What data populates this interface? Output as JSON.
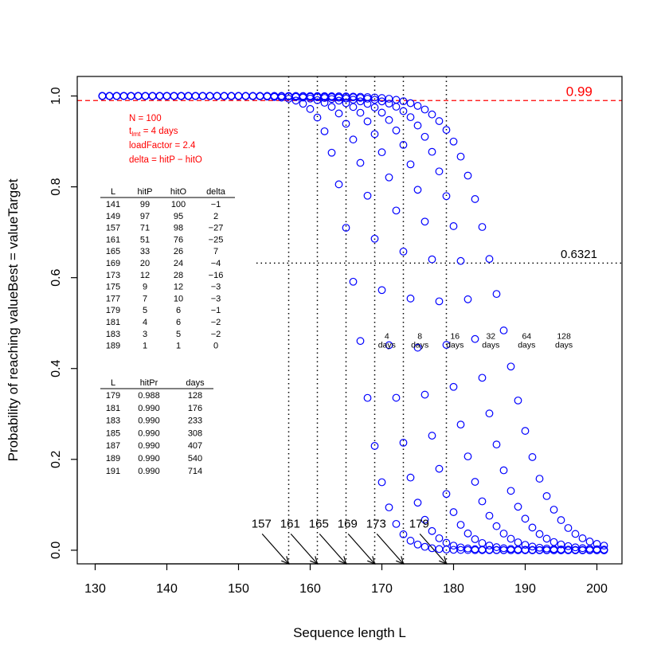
{
  "chart_data": {
    "type": "scatter",
    "xlabel": "Sequence length L",
    "ylabel": "Probability of reaching valueBest = valueTarget",
    "xlim": [
      127.5,
      203.5
    ],
    "ylim": [
      -0.03,
      1.043
    ],
    "x_ticks": [
      "130",
      "140",
      "150",
      "160",
      "170",
      "180",
      "190",
      "200"
    ],
    "y_ticks": [
      "0.0",
      "0.2",
      "0.4",
      "0.6",
      "0.8",
      "1.0"
    ],
    "grid": false,
    "series": [
      {
        "name": "4 days",
        "label_lines": [
          "4",
          "days"
        ],
        "label_at": [
          170.7,
          0.465
        ],
        "model": {
          "type": "logistic",
          "midpoint": 166.7,
          "scale": 1.9,
          "x_start": 131,
          "x_end": 201,
          "step": 1
        }
      },
      {
        "name": "8 days",
        "label_lines": [
          "8",
          "days"
        ],
        "label_at": [
          175.3,
          0.465
        ],
        "model": {
          "type": "logistic",
          "midpoint": 170.6,
          "scale": 2.05,
          "x_start": 131,
          "x_end": 201,
          "step": 1
        }
      },
      {
        "name": "16 days",
        "label_lines": [
          "16",
          "days"
        ],
        "label_at": [
          180.2,
          0.465
        ],
        "model": {
          "type": "logistic",
          "midpoint": 174.5,
          "scale": 2.3,
          "x_start": 131,
          "x_end": 201,
          "step": 1
        }
      },
      {
        "name": "32 days",
        "label_lines": [
          "32",
          "days"
        ],
        "label_at": [
          185.2,
          0.465
        ],
        "model": {
          "type": "logistic",
          "midpoint": 178.5,
          "scale": 2.6,
          "x_start": 131,
          "x_end": 201,
          "step": 1
        }
      },
      {
        "name": "64 days",
        "label_lines": [
          "64",
          "days"
        ],
        "label_at": [
          190.2,
          0.465
        ],
        "model": {
          "type": "logistic",
          "midpoint": 182.6,
          "scale": 2.85,
          "x_start": 131,
          "x_end": 201,
          "step": 1
        }
      },
      {
        "name": "128 days",
        "label_lines": [
          "128",
          "days"
        ],
        "label_at": [
          195.4,
          0.465
        ],
        "model": {
          "type": "logistic",
          "midpoint": 186.8,
          "scale": 3.1,
          "x_start": 131,
          "x_end": 201,
          "step": 1
        }
      }
    ],
    "hline_099": {
      "y": 0.99,
      "label": "0.99",
      "color": "#ff0000",
      "style": "dashed",
      "label_at": [
        195.7,
        1.0
      ]
    },
    "hline_06321": {
      "y": 0.6321,
      "x_from": 152.5,
      "label": "0.6321",
      "color": "#000000",
      "style": "dotted",
      "label_at": [
        197.5,
        0.643
      ]
    },
    "vlines": [
      {
        "x": 157,
        "label": "157"
      },
      {
        "x": 161,
        "label": "161"
      },
      {
        "x": 165,
        "label": "165"
      },
      {
        "x": 169,
        "label": "169"
      },
      {
        "x": 173,
        "label": "173"
      },
      {
        "x": 179,
        "label": "179"
      }
    ],
    "arrow_label_y": 0.05,
    "params": {
      "n": "N = 100",
      "tlmt_prefix": "t",
      "tlmt_sub": "lmt",
      "tlmt_value": " = 4  days",
      "load": "loadFactor = 2.4",
      "delta": "delta = hitP − hitO"
    },
    "table1": {
      "columns": [
        "L",
        "hitP",
        "hitO",
        "delta"
      ],
      "rows": [
        [
          "141",
          "99",
          "100",
          "−1"
        ],
        [
          "149",
          "97",
          "95",
          "2"
        ],
        [
          "157",
          "71",
          "98",
          "−27"
        ],
        [
          "161",
          "51",
          "76",
          "−25"
        ],
        [
          "165",
          "33",
          "26",
          "7"
        ],
        [
          "169",
          "20",
          "24",
          "−4"
        ],
        [
          "173",
          "12",
          "28",
          "−16"
        ],
        [
          "175",
          "9",
          "12",
          "−3"
        ],
        [
          "177",
          "7",
          "10",
          "−3"
        ],
        [
          "179",
          "5",
          "6",
          "−1"
        ],
        [
          "181",
          "4",
          "6",
          "−2"
        ],
        [
          "183",
          "3",
          "5",
          "−2"
        ],
        [
          "189",
          "1",
          "1",
          "0"
        ]
      ]
    },
    "table2": {
      "columns": [
        "L",
        "hitPr",
        "days"
      ],
      "rows": [
        [
          "179",
          "0.988",
          "128"
        ],
        [
          "181",
          "0.990",
          "176"
        ],
        [
          "183",
          "0.990",
          "233"
        ],
        [
          "185",
          "0.990",
          "308"
        ],
        [
          "187",
          "0.990",
          "407"
        ],
        [
          "189",
          "0.990",
          "540"
        ],
        [
          "191",
          "0.990",
          "714"
        ]
      ]
    },
    "colors": {
      "points": "#0000ff",
      "reference_099": "#ff0000",
      "params_text": "#ff0000",
      "axis": "#000000"
    }
  }
}
